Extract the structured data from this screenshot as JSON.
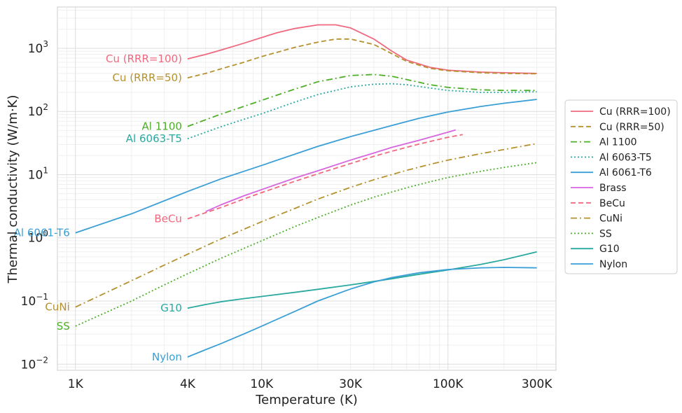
{
  "chart_data": {
    "type": "line",
    "title": "",
    "xlabel": "Temperature (K)",
    "ylabel": "Thermal conductivity (W/m·K)",
    "xscale": "log",
    "yscale": "log",
    "xlim": [
      0.8,
      380
    ],
    "ylim": [
      0.008,
      4500
    ],
    "grid": true,
    "legend_position": "right",
    "x_ticks": [
      {
        "value": 1,
        "label": "1K"
      },
      {
        "value": 4,
        "label": "4K"
      },
      {
        "value": 10,
        "label": "10K"
      },
      {
        "value": 30,
        "label": "30K"
      },
      {
        "value": 100,
        "label": "100K"
      },
      {
        "value": 300,
        "label": "300K"
      }
    ],
    "y_ticks": [
      {
        "value": 0.01,
        "base": "10",
        "exp": "−2"
      },
      {
        "value": 0.1,
        "base": "10",
        "exp": "−1"
      },
      {
        "value": 1,
        "base": "10",
        "exp": "0"
      },
      {
        "value": 10,
        "base": "10",
        "exp": "1"
      },
      {
        "value": 100,
        "base": "10",
        "exp": "2"
      },
      {
        "value": 1000,
        "base": "10",
        "exp": "3"
      }
    ],
    "series": [
      {
        "name": "Cu (RRR=100)",
        "color": "#f0697f",
        "dash": "solid",
        "label": "Cu (RRR=100)",
        "x": [
          4,
          5,
          6,
          8,
          10,
          12,
          15,
          20,
          25,
          30,
          40,
          50,
          60,
          80,
          100,
          150,
          200,
          300
        ],
        "y": [
          680,
          800,
          930,
          1200,
          1480,
          1750,
          2050,
          2350,
          2350,
          2100,
          1400,
          900,
          650,
          500,
          450,
          420,
          410,
          400
        ]
      },
      {
        "name": "Cu (RRR=50)",
        "color": "#b5912e",
        "dash": "dashed",
        "label": "Cu (RRR=50)",
        "x": [
          4,
          5,
          6,
          8,
          10,
          15,
          20,
          25,
          30,
          40,
          50,
          60,
          80,
          100,
          150,
          200,
          300
        ],
        "y": [
          340,
          400,
          470,
          600,
          740,
          1030,
          1250,
          1400,
          1400,
          1150,
          820,
          620,
          480,
          440,
          410,
          400,
          395
        ]
      },
      {
        "name": "Al 1100",
        "color": "#4daf28",
        "dash": "dashdot",
        "label": "Al 1100",
        "x": [
          4,
          6,
          8,
          10,
          15,
          20,
          30,
          40,
          50,
          60,
          80,
          100,
          150,
          200,
          300
        ],
        "y": [
          58,
          90,
          120,
          150,
          225,
          295,
          370,
          385,
          360,
          320,
          265,
          240,
          220,
          215,
          215
        ]
      },
      {
        "name": "Al 6063-T5",
        "color": "#2aa9a0",
        "dash": "dotted",
        "label": "Al 6063-T5",
        "x": [
          4,
          6,
          8,
          10,
          15,
          20,
          30,
          40,
          50,
          60,
          80,
          100,
          150,
          200,
          300
        ],
        "y": [
          37,
          57,
          75,
          92,
          140,
          185,
          245,
          270,
          275,
          265,
          235,
          215,
          200,
          200,
          205
        ]
      },
      {
        "name": "Al 6061-T6",
        "color": "#3a9fd6",
        "dash": "solid",
        "label": "Al 6061-T6",
        "x": [
          1,
          2,
          4,
          6,
          10,
          20,
          30,
          50,
          70,
          100,
          150,
          200,
          300
        ],
        "y": [
          1.2,
          2.4,
          5.4,
          8.5,
          14,
          28,
          40,
          60,
          78,
          98,
          120,
          135,
          155
        ]
      },
      {
        "name": "Brass",
        "color": "#d865e0",
        "dash": "solid",
        "label": "",
        "x": [
          5,
          6,
          8,
          10,
          15,
          20,
          30,
          40,
          50,
          70,
          90,
          110
        ],
        "y": [
          2.6,
          3.3,
          4.6,
          5.8,
          8.8,
          11.5,
          17,
          22,
          27,
          35,
          43,
          51
        ]
      },
      {
        "name": "BeCu",
        "color": "#f0697f",
        "dash": "dashed",
        "label": "BeCu",
        "x": [
          4,
          5,
          6,
          8,
          10,
          15,
          20,
          30,
          40,
          50,
          70,
          100,
          120
        ],
        "y": [
          2.0,
          2.5,
          3.0,
          4.1,
          5.2,
          7.8,
          10.3,
          15,
          19.5,
          23.5,
          30.5,
          39,
          43
        ]
      },
      {
        "name": "CuNi",
        "color": "#b5912e",
        "dash": "dashdot",
        "label": "CuNi",
        "x": [
          1,
          2,
          3,
          4,
          6,
          10,
          15,
          20,
          30,
          40,
          60,
          80,
          100,
          150,
          200,
          300
        ],
        "y": [
          0.08,
          0.21,
          0.37,
          0.55,
          0.95,
          1.8,
          2.9,
          4.1,
          6.3,
          8.3,
          11.7,
          14.5,
          17,
          21.5,
          25,
          31
        ]
      },
      {
        "name": "SS",
        "color": "#4daf28",
        "dash": "dotted",
        "label": "SS",
        "x": [
          1,
          2,
          3,
          4,
          6,
          10,
          15,
          20,
          30,
          40,
          60,
          80,
          100,
          150,
          200,
          300
        ],
        "y": [
          0.04,
          0.1,
          0.18,
          0.27,
          0.47,
          0.9,
          1.5,
          2.1,
          3.3,
          4.4,
          6.2,
          7.7,
          9.0,
          11.3,
          13,
          15.5
        ]
      },
      {
        "name": "G10",
        "color": "#2aa9a0",
        "dash": "solid",
        "label": "G10",
        "x": [
          4,
          5,
          6,
          8,
          10,
          15,
          20,
          30,
          50,
          70,
          100,
          150,
          200,
          300
        ],
        "y": [
          0.077,
          0.088,
          0.097,
          0.109,
          0.118,
          0.137,
          0.153,
          0.18,
          0.225,
          0.265,
          0.31,
          0.38,
          0.45,
          0.6
        ]
      },
      {
        "name": "Nylon",
        "color": "#3a9fd6",
        "dash": "solid",
        "label": "Nylon",
        "x": [
          4,
          5,
          6,
          8,
          10,
          15,
          20,
          30,
          40,
          50,
          70,
          100,
          150,
          200,
          300
        ],
        "y": [
          0.013,
          0.017,
          0.021,
          0.03,
          0.04,
          0.068,
          0.1,
          0.155,
          0.2,
          0.235,
          0.28,
          0.315,
          0.335,
          0.34,
          0.335
        ]
      }
    ]
  }
}
